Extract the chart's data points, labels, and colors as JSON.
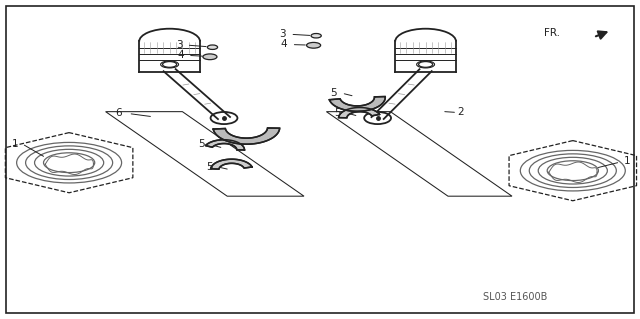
{
  "diagram_label": "SL03 E1600B",
  "background_color": "#ffffff",
  "border_color": "#222222",
  "text_color": "#222222",
  "fig_width": 6.4,
  "fig_height": 3.19,
  "dpi": 100
}
